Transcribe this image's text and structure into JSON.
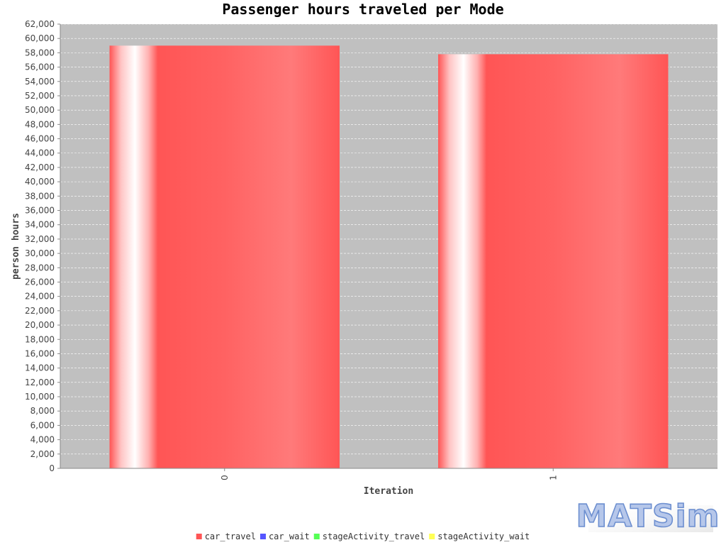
{
  "chart_data": {
    "type": "bar",
    "title": "Passenger hours traveled per Mode",
    "xlabel": "Iteration",
    "ylabel": "person hours",
    "categories": [
      "0",
      "1"
    ],
    "series": [
      {
        "name": "car_travel",
        "values": [
          59000,
          57800
        ],
        "color": "#ff5555"
      },
      {
        "name": "car_wait",
        "values": [
          0,
          0
        ],
        "color": "#5555ff"
      },
      {
        "name": "stageActivity_travel",
        "values": [
          0,
          0
        ],
        "color": "#55ff55"
      },
      {
        "name": "stageActivity_wait",
        "values": [
          0,
          0
        ],
        "color": "#ffff55"
      }
    ],
    "ylim": [
      0,
      62000
    ],
    "ytick_step": 2000,
    "grid": true,
    "legend_position": "bottom",
    "plot_background": "#c0c0c0"
  },
  "logo": {
    "text": "MATSim"
  }
}
